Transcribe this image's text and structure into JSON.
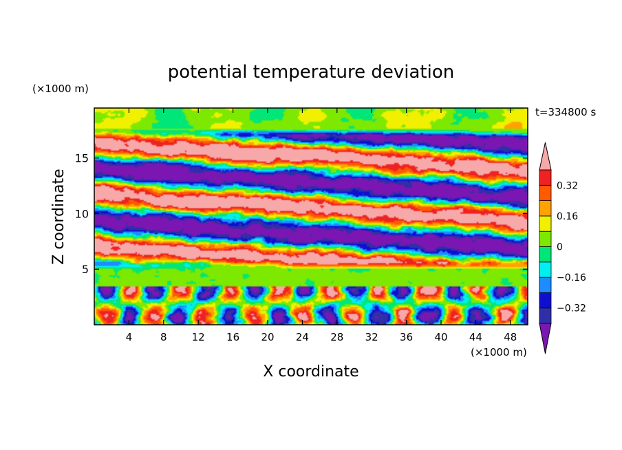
{
  "chart_data": {
    "type": "heatmap",
    "title": "potential temperature deviation",
    "xlabel": "X coordinate",
    "ylabel": "Z coordinate",
    "x_unit": "(×1000 m)",
    "y_unit": "(×1000 m)",
    "time_label": "t=334800 s",
    "x_ticks": [
      4,
      8,
      12,
      16,
      20,
      24,
      28,
      32,
      36,
      40,
      44,
      48
    ],
    "y_ticks": [
      5,
      10,
      15
    ],
    "xlim": [
      0,
      50
    ],
    "ylim": [
      0,
      19.5
    ],
    "colorbar": {
      "labels": [
        "0.32",
        "0.16",
        "0",
        "-0.16",
        "-0.32"
      ],
      "levels": [
        -0.4,
        -0.32,
        -0.24,
        -0.16,
        -0.08,
        0,
        0.08,
        0.16,
        0.24,
        0.32,
        0.4
      ],
      "colors": [
        "#7b16b2",
        "#2f2fa8",
        "#0f0fd2",
        "#1e8cff",
        "#00f0f0",
        "#00e678",
        "#7de800",
        "#f0f000",
        "#ffa200",
        "#ff5a00",
        "#ee2222",
        "#f7a8a8"
      ],
      "extend": "both"
    },
    "structure": [
      {
        "z_range": [
          0,
          3.5
        ],
        "pattern": "convective cells",
        "value_range": [
          -0.4,
          0.4
        ]
      },
      {
        "z_range": [
          3.5,
          5.0
        ],
        "pattern": "near neutral",
        "value": 0.02
      },
      {
        "z_range": [
          5.0,
          17.5
        ],
        "pattern": "alternating tilted layers",
        "value_range": [
          -0.45,
          0.45
        ]
      },
      {
        "z_range": [
          17.5,
          19.5
        ],
        "pattern": "near neutral",
        "value": 0.06
      }
    ]
  }
}
